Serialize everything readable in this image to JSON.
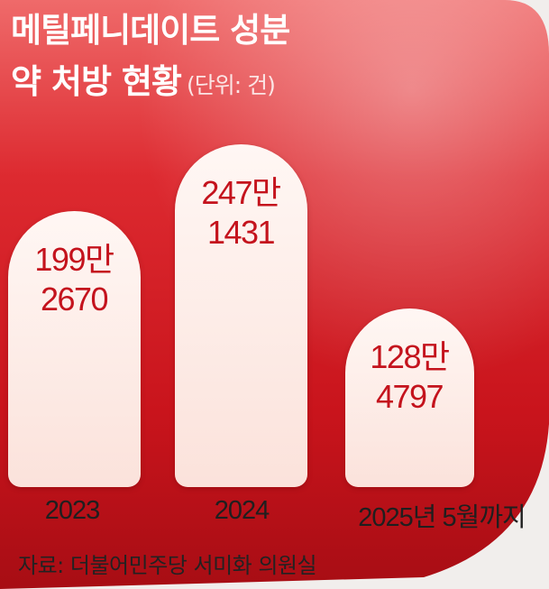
{
  "chart_data": {
    "type": "bar",
    "title": "메틸페니데이트 성분 약 처방 현황",
    "title_line1": "메틸페니데이트 성분",
    "title_line2": "약 처방 현황",
    "unit_label": "(단위: 건)",
    "categories": [
      "2023",
      "2024",
      "2025년 5월까지"
    ],
    "values": [
      1992670,
      2471431,
      1284797
    ],
    "data_labels": [
      [
        "199만",
        "2670"
      ],
      [
        "247만",
        "1431"
      ],
      [
        "128만",
        "4797"
      ]
    ],
    "source": "자료: 더불어민주당 서미화 의원실"
  },
  "colors": {
    "background_red": "#d8252b",
    "bar_fill": "#fdf0ec",
    "value_text": "#c4131d",
    "title_text": "#ffffff"
  }
}
